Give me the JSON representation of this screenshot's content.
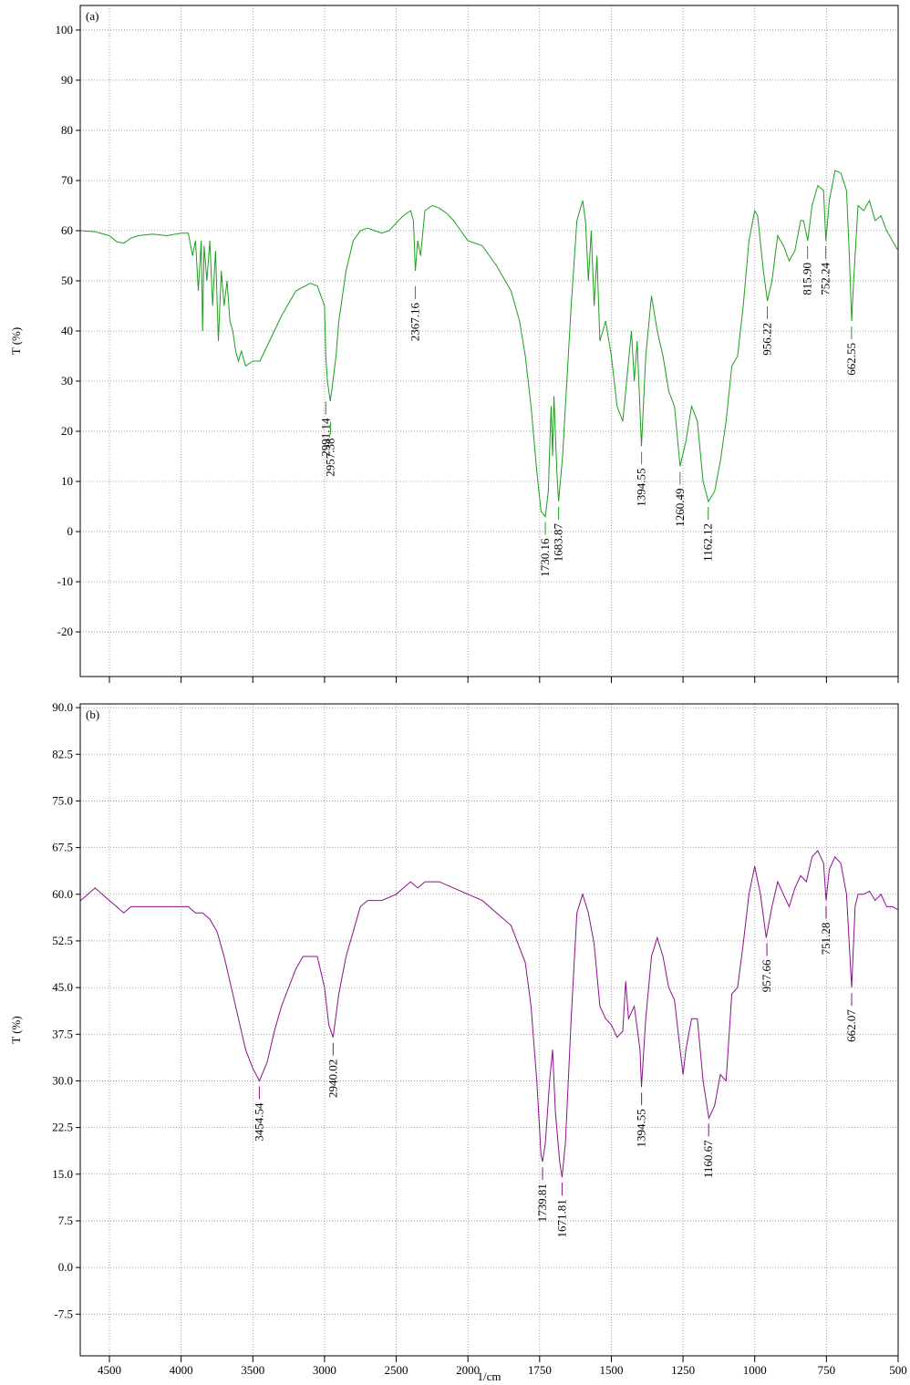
{
  "chart_data": [
    {
      "type": "line",
      "title": "(a)",
      "ylabel": "T (%)",
      "xlim": [
        4700,
        500
      ],
      "ylim": [
        -28.9,
        104.9
      ],
      "xticks": [
        4500,
        4000,
        3500,
        3000,
        2500,
        2000,
        1750,
        1500,
        1250,
        1000,
        750,
        500
      ],
      "xtick_labels": false,
      "yticks": [
        100,
        90,
        80,
        70,
        60,
        50,
        40,
        30,
        20,
        10,
        0,
        -10,
        -20
      ],
      "grid": true,
      "series": [
        {
          "color": "#1e9e1e",
          "x": [
            4700,
            4600,
            4500,
            4450,
            4400,
            4350,
            4300,
            4200,
            4100,
            4000,
            3950,
            3920,
            3900,
            3880,
            3860,
            3850,
            3840,
            3820,
            3800,
            3780,
            3760,
            3740,
            3720,
            3700,
            3680,
            3660,
            3640,
            3620,
            3600,
            3580,
            3550,
            3500,
            3450,
            3400,
            3300,
            3200,
            3100,
            3050,
            3000,
            2991,
            2980,
            2960,
            2950,
            2920,
            2900,
            2850,
            2800,
            2750,
            2700,
            2650,
            2600,
            2550,
            2500,
            2450,
            2400,
            2380,
            2367,
            2350,
            2330,
            2300,
            2250,
            2200,
            2150,
            2100,
            2050,
            2000,
            1950,
            1900,
            1850,
            1820,
            1800,
            1780,
            1760,
            1745,
            1730,
            1720,
            1710,
            1705,
            1700,
            1690,
            1684,
            1670,
            1660,
            1640,
            1620,
            1600,
            1590,
            1580,
            1570,
            1560,
            1550,
            1540,
            1520,
            1500,
            1480,
            1460,
            1450,
            1430,
            1420,
            1410,
            1395,
            1380,
            1360,
            1340,
            1320,
            1300,
            1280,
            1260,
            1240,
            1220,
            1200,
            1180,
            1162,
            1140,
            1120,
            1100,
            1080,
            1060,
            1040,
            1020,
            1000,
            990,
            970,
            956,
            940,
            920,
            900,
            880,
            860,
            840,
            830,
            815,
            800,
            780,
            760,
            752,
            740,
            720,
            700,
            680,
            670,
            662,
            655,
            640,
            620,
            600,
            580,
            560,
            540,
            520,
            500
          ],
          "values": [
            60,
            59.8,
            59,
            57.8,
            57.5,
            58.5,
            59,
            59.3,
            59,
            59.5,
            59.5,
            55,
            58,
            48,
            58,
            40,
            57,
            50,
            58,
            45,
            56,
            38,
            52,
            45,
            50,
            42,
            40,
            36,
            34,
            36,
            33,
            34,
            34,
            37,
            43,
            48,
            49.5,
            49,
            45,
            35,
            30,
            26,
            28,
            35,
            42,
            52,
            58,
            60,
            60.5,
            60,
            59.5,
            60,
            61.5,
            63,
            64,
            62,
            52,
            58,
            55,
            64,
            65,
            64.5,
            63.5,
            62,
            60,
            58,
            57,
            53,
            48,
            42,
            35,
            25,
            12,
            4,
            3,
            8,
            25,
            15,
            27,
            12,
            6,
            15,
            25,
            45,
            62,
            66,
            62,
            50,
            60,
            45,
            55,
            38,
            42,
            35,
            25,
            22,
            28,
            40,
            30,
            38,
            17,
            35,
            47,
            40,
            35,
            28,
            25,
            13,
            18,
            25,
            22,
            10,
            6,
            8,
            14,
            22,
            33,
            35,
            45,
            58,
            64,
            63,
            52,
            46,
            50,
            59,
            57,
            54,
            56,
            62,
            62,
            58,
            65,
            69,
            68,
            58,
            66,
            72,
            71.5,
            68,
            55,
            42,
            50,
            65,
            64,
            66,
            62,
            63,
            60,
            58,
            56
          ]
        }
      ],
      "peaks": [
        {
          "x": 2991.14,
          "y": 27,
          "label": "2991.14"
        },
        {
          "x": 2957.38,
          "y": 23,
          "label": "2957.38"
        },
        {
          "x": 2367.16,
          "y": 50,
          "label": "2367.16"
        },
        {
          "x": 1730.16,
          "y": 3,
          "label": "1730.16"
        },
        {
          "x": 1683.87,
          "y": 6,
          "label": "1683.87"
        },
        {
          "x": 1394.55,
          "y": 17,
          "label": "1394.55"
        },
        {
          "x": 1260.49,
          "y": 13,
          "label": "1260.49"
        },
        {
          "x": 1162.12,
          "y": 6,
          "label": "1162.12"
        },
        {
          "x": 956.22,
          "y": 46,
          "label": "956.22"
        },
        {
          "x": 815.9,
          "y": 58,
          "label": "815.90"
        },
        {
          "x": 752.24,
          "y": 58,
          "label": "752.24"
        },
        {
          "x": 662.55,
          "y": 42,
          "label": "662.55"
        }
      ]
    },
    {
      "type": "line",
      "title": "(b)",
      "ylabel": "T (%)",
      "xlabel": "1/cm",
      "xlim": [
        4700,
        500
      ],
      "ylim": [
        -14.2,
        90.6
      ],
      "xticks": [
        4500,
        4000,
        3500,
        3000,
        2500,
        2000,
        1750,
        1500,
        1250,
        1000,
        750,
        500
      ],
      "xtick_labels": true,
      "yticks": [
        {
          "value": 90,
          "label": "90.0"
        },
        82.5,
        {
          "value": 75,
          "label": "75.0"
        },
        67.5,
        {
          "value": 60,
          "label": "60.0"
        },
        52.5,
        {
          "value": 45,
          "label": "45.0"
        },
        37.5,
        {
          "value": 30,
          "label": "30.0"
        },
        22.5,
        {
          "value": 15,
          "label": "15.0"
        },
        7.5,
        {
          "value": 0,
          "label": "0.0"
        },
        -7.5
      ],
      "grid": true,
      "series": [
        {
          "color": "#8b108b",
          "x": [
            4700,
            4650,
            4600,
            4550,
            4500,
            4450,
            4400,
            4350,
            4300,
            4200,
            4100,
            4000,
            3950,
            3900,
            3850,
            3800,
            3750,
            3700,
            3650,
            3600,
            3550,
            3500,
            3454,
            3400,
            3350,
            3300,
            3200,
            3150,
            3050,
            3000,
            2970,
            2940,
            2900,
            2850,
            2800,
            2750,
            2700,
            2600,
            2500,
            2450,
            2400,
            2350,
            2300,
            2200,
            2100,
            2000,
            1950,
            1900,
            1850,
            1800,
            1780,
            1760,
            1745,
            1740,
            1730,
            1715,
            1705,
            1695,
            1680,
            1672,
            1660,
            1640,
            1620,
            1600,
            1580,
            1560,
            1540,
            1520,
            1500,
            1480,
            1460,
            1450,
            1440,
            1420,
            1400,
            1395,
            1380,
            1360,
            1340,
            1320,
            1300,
            1280,
            1260,
            1250,
            1240,
            1220,
            1200,
            1180,
            1160,
            1140,
            1120,
            1100,
            1080,
            1060,
            1040,
            1020,
            1000,
            980,
            960,
            940,
            920,
            900,
            880,
            860,
            840,
            820,
            800,
            780,
            760,
            751,
            740,
            720,
            700,
            680,
            662,
            650,
            640,
            620,
            600,
            580,
            560,
            540,
            520,
            500
          ],
          "values": [
            59,
            60,
            61,
            60,
            59,
            58,
            57,
            58,
            58,
            58,
            58,
            58,
            58,
            57,
            57,
            56,
            54,
            50,
            45,
            40,
            35,
            32,
            30,
            33,
            38,
            42,
            48,
            50,
            50,
            45,
            39,
            37,
            44,
            50,
            54,
            58,
            59,
            59,
            60,
            61,
            62,
            61,
            62,
            62,
            61,
            60,
            59,
            57,
            55,
            49,
            42,
            30,
            18,
            17,
            20,
            30,
            35,
            25,
            17,
            14.5,
            20,
            40,
            57,
            60,
            57,
            52,
            42,
            40,
            39,
            37,
            38,
            46,
            40,
            42,
            35,
            29,
            40,
            50,
            53,
            50,
            45,
            43,
            35,
            31,
            35,
            40,
            40,
            30,
            24,
            26,
            31,
            30,
            44,
            45,
            52,
            60,
            64.5,
            60,
            53,
            58,
            62,
            60,
            58,
            61,
            63,
            62,
            66,
            67,
            65,
            59,
            64,
            66,
            65,
            60,
            45,
            58,
            60,
            60,
            60.5,
            59,
            60,
            58,
            58,
            57.5
          ]
        }
      ],
      "peaks": [
        {
          "x": 3454.54,
          "y": 30,
          "label": "3454.54"
        },
        {
          "x": 2940.02,
          "y": 37,
          "label": "2940.02"
        },
        {
          "x": 1739.81,
          "y": 17,
          "label": "1739.81"
        },
        {
          "x": 1671.81,
          "y": 14.5,
          "label": "1671.81"
        },
        {
          "x": 1394.55,
          "y": 29,
          "label": "1394.55"
        },
        {
          "x": 1160.67,
          "y": 24,
          "label": "1160.67"
        },
        {
          "x": 957.66,
          "y": 53,
          "label": "957.66"
        },
        {
          "x": 751.28,
          "y": 59,
          "label": "751.28"
        },
        {
          "x": 662.07,
          "y": 45,
          "label": "662.07"
        }
      ]
    }
  ]
}
